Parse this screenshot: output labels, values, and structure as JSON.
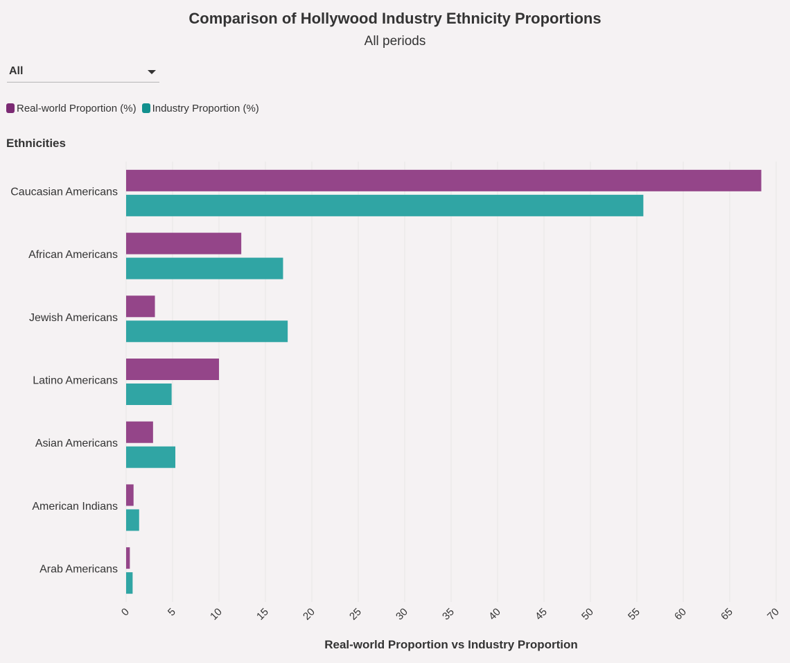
{
  "header": {
    "title": "Comparison of Hollywood Industry Ethnicity Proportions",
    "subtitle": "All periods"
  },
  "filter": {
    "selected": "All"
  },
  "colors": {
    "real_world": "#944589",
    "industry": "#30a5a4",
    "legend_real_world": "#7b2a73",
    "legend_industry": "#12908e",
    "grid": "#e8e5e6",
    "background": "#f5f2f3"
  },
  "chart_data": {
    "type": "bar",
    "orientation": "horizontal",
    "xlabel": "Real-world Proportion vs Industry Proportion",
    "ylabel": "Ethnicities",
    "xlim": [
      0,
      70
    ],
    "xticks": [
      0,
      5,
      10,
      15,
      20,
      25,
      30,
      35,
      40,
      45,
      50,
      55,
      60,
      65,
      70
    ],
    "grid": true,
    "legend_position": "top-left",
    "categories": [
      "Caucasian Americans",
      "African Americans",
      "Jewish Americans",
      "Latino Americans",
      "Asian Americans",
      "American Indians",
      "Arab Americans"
    ],
    "series": [
      {
        "name": "Real-world Proportion (%)",
        "values": [
          68.4,
          12.4,
          3.1,
          10.0,
          2.9,
          0.8,
          0.4
        ]
      },
      {
        "name": "Industry Proportion (%)",
        "values": [
          55.7,
          16.9,
          17.4,
          4.9,
          5.3,
          1.4,
          0.7
        ]
      }
    ]
  }
}
